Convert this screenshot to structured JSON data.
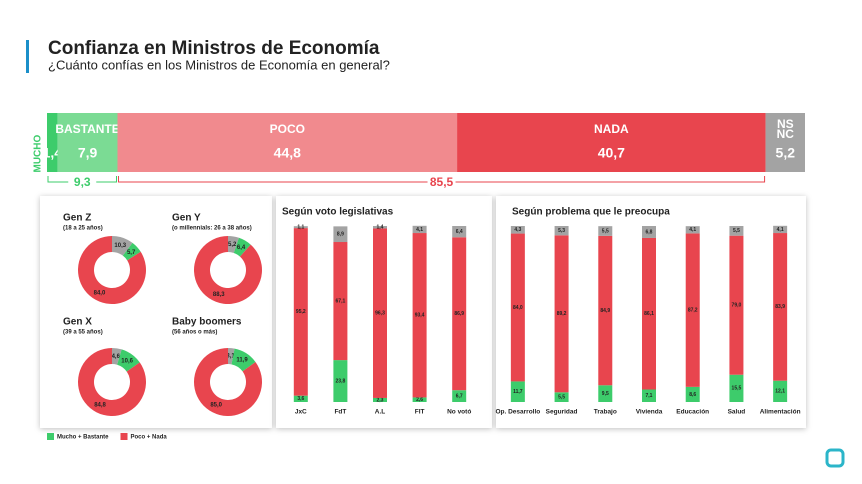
{
  "header": {
    "title": "Confianza en Ministros de Economía",
    "subtitle": "¿Cuánto confías en los Ministros de Economía en general?"
  },
  "chart_data": [
    {
      "type": "stacked-hbar",
      "series": [
        {
          "name": "MUCHO",
          "color": "#3dcc6b",
          "values": [
            1.4
          ],
          "value_labels": [
            "1,4"
          ]
        },
        {
          "name": "BASTANTE",
          "color": "#7bdb94",
          "values": [
            7.9
          ],
          "value_labels": [
            "7,9"
          ]
        },
        {
          "name": "POCO",
          "color": "#f18a8e",
          "values": [
            44.8
          ],
          "value_labels": [
            "44,8"
          ]
        },
        {
          "name": "NADA",
          "color": "#e8454e",
          "values": [
            40.7
          ],
          "value_labels": [
            "40,7"
          ]
        },
        {
          "name": "NS NC",
          "color": "#a3a3a3",
          "values": [
            5.2
          ],
          "value_labels": [
            "5,2"
          ]
        }
      ],
      "totals": [
        9.3,
        85.5
      ],
      "total_labels": [
        "9,3",
        "85,5"
      ],
      "total_colors": [
        "#3dcc6b",
        "#e8454e"
      ]
    },
    {
      "type": "donut",
      "categories": [
        "Gen Z",
        "Gen Y",
        "Gen X",
        "Baby boomers"
      ],
      "subtitles": [
        "(18 a 25 años)",
        "(o millennials: 26 a 38 años)",
        "(39 a 55 años)",
        "(56 años o más)"
      ],
      "series": [
        {
          "name": "Mucho + Bastante",
          "color": "#3dcc6b",
          "values": [
            5.7,
            6.4,
            10.6,
            11.9
          ],
          "value_labels": [
            "5,7",
            "6,4",
            "10,6",
            "11,9"
          ]
        },
        {
          "name": "Poco + Nada",
          "color": "#e8454e",
          "values": [
            84.0,
            88.3,
            84.8,
            85.0
          ],
          "value_labels": [
            "84,0",
            "88,3",
            "84,8",
            "85,0"
          ]
        },
        {
          "color": "#a3a3a3",
          "values": [
            10.3,
            5.2,
            4.6,
            3.1
          ],
          "value_labels": [
            "10,3",
            "5,2",
            "4,6",
            "3,1"
          ]
        }
      ],
      "legend": "bottom-left"
    },
    {
      "type": "stacked-vbar",
      "title": "Según voto legislativas",
      "ylim": [
        0,
        100
      ],
      "categories": [
        "JxC",
        "FdT",
        "A.L",
        "FIT",
        "No votó"
      ],
      "series": [
        {
          "color": "#3dcc6b",
          "values": [
            3.6,
            23.8,
            2.3,
            2.6,
            6.7
          ],
          "value_labels": [
            "3,6",
            "23,8",
            "2,3",
            "2,6",
            "6,7"
          ]
        },
        {
          "color": "#e8454e",
          "values": [
            95.2,
            67.1,
            96.3,
            93.4,
            86.9
          ],
          "value_labels": [
            "95,2",
            "67,1",
            "96,3",
            "93,4",
            "86,9"
          ]
        },
        {
          "color": "#a3a3a3",
          "values": [
            1.1,
            8.9,
            1.4,
            4.1,
            6.4
          ],
          "value_labels": [
            "1,1",
            "8,9",
            "1,4",
            "4,1",
            "6,4"
          ]
        }
      ]
    },
    {
      "type": "stacked-vbar",
      "title": "Según problema que le preocupa",
      "ylim": [
        0,
        100
      ],
      "categories": [
        "Op. Desarrollo",
        "Seguridad",
        "Trabajo",
        "Vivienda",
        "Educación",
        "Salud",
        "Alimentación"
      ],
      "series": [
        {
          "color": "#3dcc6b",
          "values": [
            11.7,
            5.5,
            9.5,
            7.1,
            8.6,
            15.5,
            12.1
          ],
          "value_labels": [
            "11,7",
            "5,5",
            "9,5",
            "7,1",
            "8,6",
            "15,5",
            "12,1"
          ]
        },
        {
          "color": "#e8454e",
          "values": [
            84.0,
            89.2,
            84.9,
            86.1,
            87.2,
            79.0,
            83.9
          ],
          "value_labels": [
            "84,0",
            "89,2",
            "84,9",
            "86,1",
            "87,2",
            "79,0",
            "83,9"
          ]
        },
        {
          "color": "#a3a3a3",
          "values": [
            4.3,
            5.3,
            5.5,
            6.8,
            4.1,
            5.5,
            4.1
          ],
          "value_labels": [
            "4,3",
            "5,3",
            "5,5",
            "6,8",
            "4,1",
            "5,5",
            "4,1"
          ]
        }
      ]
    }
  ]
}
